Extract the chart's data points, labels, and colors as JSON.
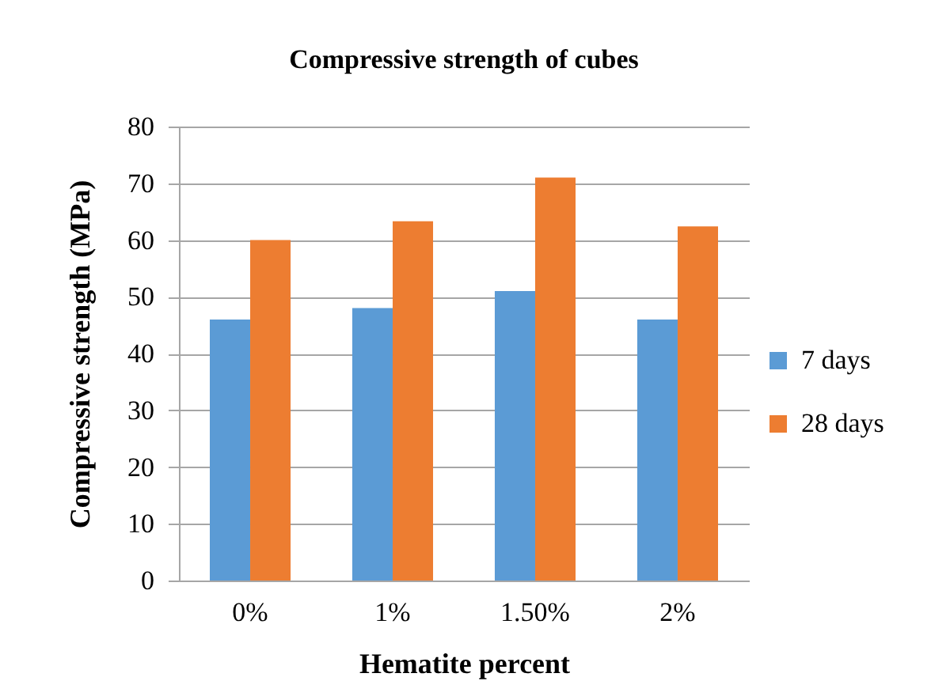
{
  "chart_data": {
    "type": "bar",
    "title": "Compressive strength of cubes",
    "xlabel": "Hematite percent",
    "ylabel": "Compressive strength (MPa)",
    "categories": [
      "0%",
      "1%",
      "1.50%",
      "2%"
    ],
    "series": [
      {
        "name": "7 days",
        "color": "#5b9bd5",
        "values": [
          46,
          48,
          51,
          46
        ]
      },
      {
        "name": "28 days",
        "color": "#ed7d31",
        "values": [
          60,
          63.3,
          71,
          62.4
        ]
      }
    ],
    "ylim": [
      0,
      80
    ],
    "yticks": [
      0,
      10,
      20,
      30,
      40,
      50,
      60,
      70,
      80
    ],
    "grid": "y",
    "legend": "right"
  }
}
